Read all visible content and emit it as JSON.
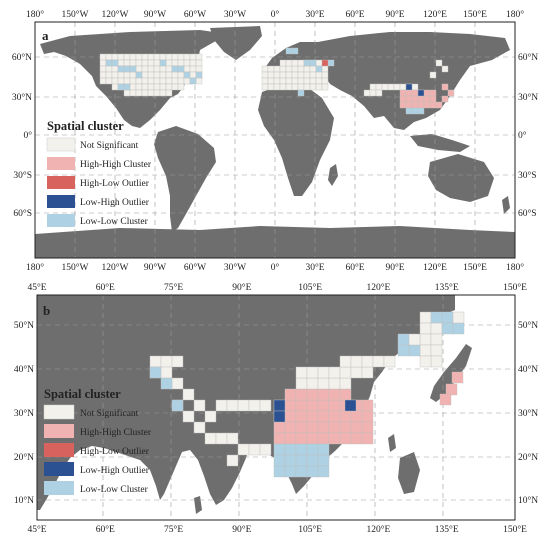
{
  "colors": {
    "land": "#6e6e6e",
    "ocean": "#ffffff",
    "grid_line": "#9a9a9a",
    "not_significant": "#f3f1ec",
    "high_high": "#f0b3b1",
    "high_low": "#d8625d",
    "low_high": "#2c5192",
    "low_low": "#aed2e3",
    "cell_border": "#bdbdbd"
  },
  "panels": [
    {
      "id": "a",
      "letter": "a",
      "region": "world",
      "top_ticks": [
        "180°",
        "150°W",
        "120°W",
        "90°W",
        "60°W",
        "30°W",
        "0°",
        "30°E",
        "60°E",
        "90°E",
        "120°E",
        "150°E",
        "180°"
      ],
      "bottom_ticks": [
        "180°",
        "150°W",
        "120°W",
        "90°W",
        "60°W",
        "30°W",
        "0°",
        "30°E",
        "60°E",
        "90°E",
        "120°E",
        "150°E",
        "180°"
      ],
      "left_ticks": [
        "60°N",
        "30°N",
        "0°",
        "30°S",
        "60°S"
      ],
      "right_ticks": [
        "60°N",
        "30°N",
        "0°",
        "30°S",
        "60°S"
      ],
      "legend": {
        "title": "Spatial cluster",
        "items": [
          {
            "label": "Not Significant",
            "color": "#f3f1ec"
          },
          {
            "label": "High-High Cluster",
            "color": "#f0b3b1"
          },
          {
            "label": "High-Low Outlier",
            "color": "#d8625d"
          },
          {
            "label": "Low-High Outlier",
            "color": "#2c5192"
          },
          {
            "label": "Low-Low Cluster",
            "color": "#aed2e3"
          }
        ]
      }
    },
    {
      "id": "b",
      "letter": "b",
      "region": "Asia",
      "top_ticks": [
        "45°E",
        "60°E",
        "75°E",
        "90°E",
        "105°E",
        "120°E",
        "135°E",
        "150°E"
      ],
      "bottom_ticks": [
        "45°E",
        "60°E",
        "75°E",
        "90°E",
        "105°E",
        "120°E",
        "135°E",
        "150°E"
      ],
      "left_ticks": [
        "50°N",
        "40°N",
        "30°N",
        "20°N",
        "10°N"
      ],
      "right_ticks": [
        "50°N",
        "40°N",
        "30°N",
        "20°N",
        "10°N"
      ],
      "legend": {
        "title": "Spatial cluster",
        "items": [
          {
            "label": "Not Significant",
            "color": "#f3f1ec"
          },
          {
            "label": "High-High Cluster",
            "color": "#f0b3b1"
          },
          {
            "label": "High-Low Outlier",
            "color": "#d8625d"
          },
          {
            "label": "Low-High Outlier",
            "color": "#2c5192"
          },
          {
            "label": "Low-Low Cluster",
            "color": "#aed2e3"
          }
        ]
      }
    }
  ]
}
